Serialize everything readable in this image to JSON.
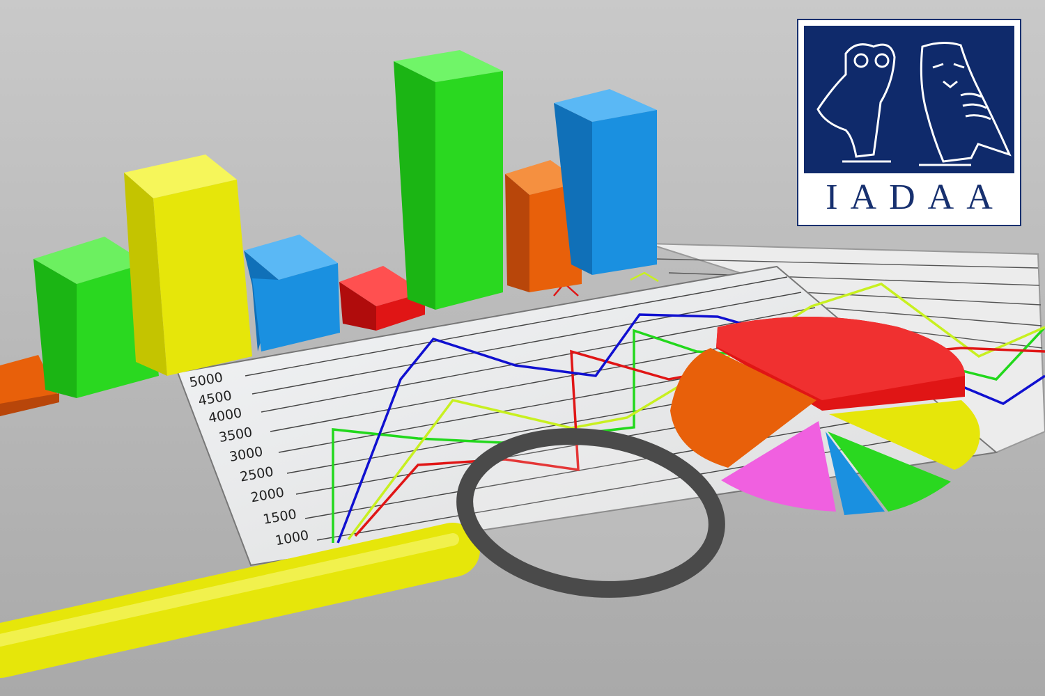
{
  "axis": {
    "tick_labels": [
      "5000",
      "4500",
      "4000",
      "3500",
      "3000",
      "2500",
      "2000",
      "1500",
      "1000"
    ]
  },
  "logo": {
    "text": "IADAA",
    "panel_color": "#0f2a6b",
    "emblem": "two-owls-icon"
  },
  "colors": {
    "background": "#b9b9b9",
    "green": "#22d81c",
    "yellow": "#e6e60a",
    "blue": "#1a90e0",
    "red": "#e01515",
    "orange": "#e8600a",
    "magenta": "#f060e0"
  }
}
